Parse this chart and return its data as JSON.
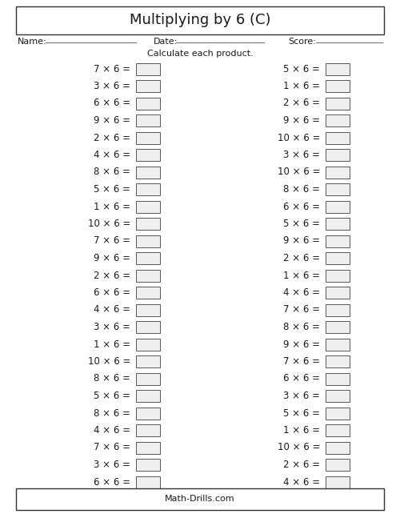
{
  "title": "Multiplying by 6 (C)",
  "name_label": "Name:",
  "date_label": "Date:",
  "score_label": "Score:",
  "instruction": "Calculate each product.",
  "footer": "Math-Drills.com",
  "multiplier": 6,
  "left_column": [
    7,
    3,
    6,
    9,
    2,
    4,
    8,
    5,
    1,
    10,
    7,
    9,
    2,
    6,
    4,
    3,
    1,
    10,
    8,
    5,
    8,
    4,
    7,
    3,
    6
  ],
  "right_column": [
    5,
    1,
    2,
    9,
    10,
    3,
    10,
    8,
    6,
    5,
    9,
    2,
    1,
    4,
    7,
    8,
    9,
    7,
    6,
    3,
    5,
    1,
    10,
    2,
    4
  ],
  "bg_color": "#ffffff",
  "border_color": "#333333",
  "text_color": "#1a1a1a",
  "box_edge_color": "#555555",
  "box_face_color": "#efefef",
  "font_size_title": 13,
  "font_size_header": 8,
  "font_size_body": 8.5,
  "font_size_footer": 8
}
